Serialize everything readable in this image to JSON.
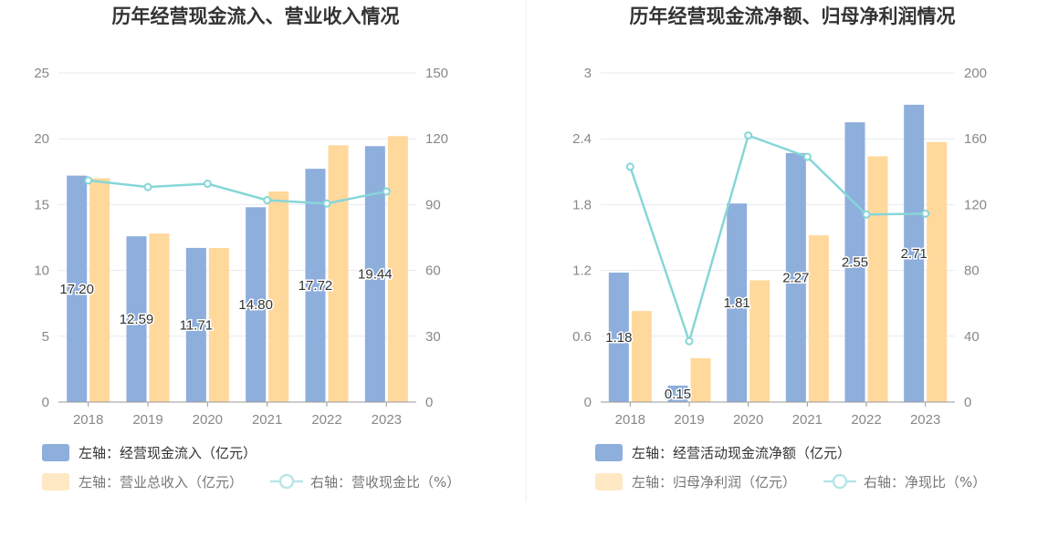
{
  "colors": {
    "bar_primary": "#8eaedc",
    "bar_secondary": "#ffd89b",
    "line": "#86d6d8",
    "grid": "#e6e9f2",
    "axis": "#999999"
  },
  "chart_data": [
    {
      "type": "bar",
      "title": "历年经营现金流入、营业收入情况",
      "categories": [
        "2018",
        "2019",
        "2020",
        "2021",
        "2022",
        "2023"
      ],
      "left_axis": {
        "min": 0,
        "max": 25,
        "ticks": [
          "0",
          "5",
          "10",
          "15",
          "20",
          "25"
        ]
      },
      "right_axis": {
        "min": 0,
        "max": 150,
        "ticks": [
          "0",
          "30",
          "60",
          "90",
          "120",
          "150"
        ]
      },
      "series": [
        {
          "name": "左轴：经营现金流入（亿元）",
          "kind": "bar",
          "axis": "left",
          "values": [
            17.2,
            12.59,
            11.71,
            14.8,
            17.72,
            19.44
          ],
          "labels": [
            "17.20",
            "12.59",
            "11.71",
            "14.80",
            "17.72",
            "19.44"
          ]
        },
        {
          "name": "左轴：营业总收入（亿元）",
          "kind": "bar",
          "axis": "left",
          "values": [
            17.0,
            12.8,
            11.7,
            16.0,
            19.5,
            20.2
          ]
        },
        {
          "name": "右轴：营收现金比（%）",
          "kind": "line",
          "axis": "right",
          "values": [
            101,
            98,
            99.5,
            92,
            90.5,
            96
          ]
        }
      ]
    },
    {
      "type": "bar",
      "title": "历年经营现金流净额、归母净利润情况",
      "categories": [
        "2018",
        "2019",
        "2020",
        "2021",
        "2022",
        "2023"
      ],
      "left_axis": {
        "min": 0,
        "max": 3,
        "ticks": [
          "0",
          "0.6",
          "1.2",
          "1.8",
          "2.4",
          "3"
        ]
      },
      "right_axis": {
        "min": 0,
        "max": 200,
        "ticks": [
          "0",
          "40",
          "80",
          "120",
          "160",
          "200"
        ]
      },
      "series": [
        {
          "name": "左轴：经营活动现金流净额（亿元）",
          "kind": "bar",
          "axis": "left",
          "values": [
            1.18,
            0.15,
            1.81,
            2.27,
            2.55,
            2.71
          ],
          "labels": [
            "1.18",
            "0.15",
            "1.81",
            "2.27",
            "2.55",
            "2.71"
          ]
        },
        {
          "name": "左轴：归母净利润（亿元）",
          "kind": "bar",
          "axis": "left",
          "values": [
            0.83,
            0.4,
            1.11,
            1.52,
            2.24,
            2.37
          ]
        },
        {
          "name": "右轴：净现比（%）",
          "kind": "line",
          "axis": "right",
          "values": [
            143,
            37,
            162,
            149,
            114,
            114.5
          ]
        }
      ]
    }
  ]
}
